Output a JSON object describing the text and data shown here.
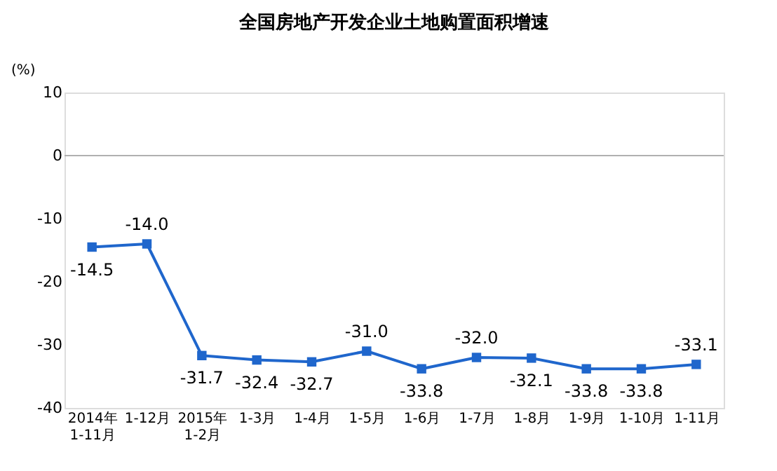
{
  "chart_data": {
    "type": "line",
    "title": "全国房地产开发企业土地购置面积增速",
    "ylabel": "(%)",
    "categories": [
      "2014年\n1-11月",
      "1-12月",
      "2015年\n1-2月",
      "1-3月",
      "1-4月",
      "1-5月",
      "1-6月",
      "1-7月",
      "1-8月",
      "1-9月",
      "1-10月",
      "1-11月"
    ],
    "series": [
      {
        "color": "#1f66cc",
        "values": [
          -14.5,
          -14.0,
          -31.7,
          -32.4,
          -32.7,
          -31.0,
          -33.8,
          -32.0,
          -32.1,
          -33.8,
          -33.8,
          -33.1
        ],
        "value_labels": [
          "-14.5",
          "-14.0",
          "-31.7",
          "-32.4",
          "-32.7",
          "-31.0",
          "-33.8",
          "-32.0",
          "-32.1",
          "-33.8",
          "-33.8",
          "-33.1"
        ]
      }
    ],
    "ylim": [
      -40,
      10
    ],
    "yticks": [
      -40,
      -30,
      -20,
      -10,
      0,
      10
    ],
    "ref_lines": [
      {
        "axis": "y",
        "value": 0,
        "color": "#b0b0b0"
      }
    ],
    "marker": "square",
    "line_style": "solid",
    "grid": false,
    "legend": false
  }
}
